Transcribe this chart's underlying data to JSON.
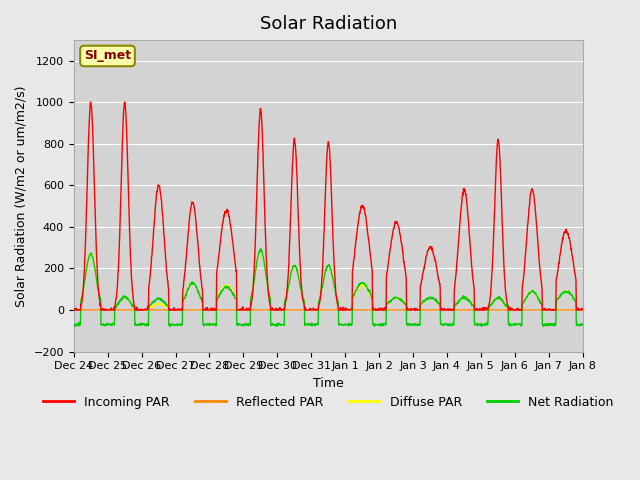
{
  "title": "Solar Radiation",
  "xlabel": "Time",
  "ylabel": "Solar Radiation (W/m2 or um/m2/s)",
  "ylim": [
    -200,
    1300
  ],
  "yticks": [
    -200,
    0,
    200,
    400,
    600,
    800,
    1000,
    1200
  ],
  "background_color": "#e8e8e8",
  "plot_bg_color": "#d3d3d3",
  "colors": {
    "incoming": "#ff0000",
    "reflected": "#ff8800",
    "diffuse": "#ffff00",
    "net": "#00cc00"
  },
  "legend_labels": [
    "Incoming PAR",
    "Reflected PAR",
    "Diffuse PAR",
    "Net Radiation"
  ],
  "station_label": "SI_met",
  "n_days": 15,
  "day_labels": [
    "Dec 24",
    "Dec 25",
    "Dec 26",
    "Dec 27",
    "Dec 28",
    "Dec 29",
    "Dec 30",
    "Dec 31",
    "Jan 1",
    "Jan 2",
    "Jan 3",
    "Jan 4",
    "Jan 5",
    "Jan 6",
    "Jan 7",
    "Jan 8"
  ],
  "peaks_incoming": [
    1000,
    1000,
    600,
    520,
    480,
    970,
    820,
    810,
    500,
    420,
    300,
    580,
    820,
    580,
    380
  ],
  "peaks_diffuse": [
    270,
    65,
    30,
    130,
    120,
    290,
    215,
    215,
    120,
    60,
    60,
    60,
    60,
    90,
    90
  ],
  "peaks_net": [
    270,
    65,
    55,
    130,
    110,
    290,
    215,
    215,
    130,
    60,
    60,
    60,
    60,
    90,
    90
  ],
  "night_net": -70.0,
  "line_width": 1.0,
  "title_fontsize": 13,
  "label_fontsize": 9,
  "tick_fontsize": 8
}
